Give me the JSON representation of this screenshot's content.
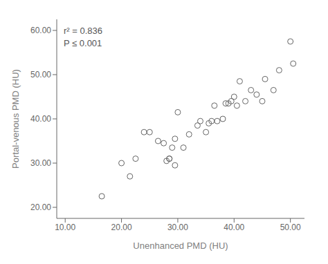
{
  "chart_data": {
    "type": "scatter",
    "x": [
      16.5,
      20.0,
      21.5,
      22.5,
      24.0,
      25.0,
      26.5,
      27.5,
      28.0,
      28.5,
      28.5,
      29.0,
      29.5,
      29.5,
      30.0,
      31.0,
      32.0,
      33.5,
      34.0,
      35.0,
      35.5,
      36.0,
      36.5,
      37.0,
      38.0,
      38.5,
      39.0,
      39.5,
      40.0,
      40.5,
      41.0,
      42.0,
      43.0,
      44.0,
      45.0,
      45.5,
      47.0,
      48.0,
      50.0,
      50.5
    ],
    "values": [
      22.5,
      30.0,
      27.0,
      31.0,
      37.0,
      37.0,
      35.0,
      34.5,
      30.5,
      31.0,
      31.0,
      33.5,
      29.5,
      35.5,
      41.5,
      33.5,
      36.5,
      38.5,
      39.5,
      37.0,
      39.0,
      39.5,
      43.0,
      39.5,
      40.0,
      43.5,
      43.5,
      44.0,
      45.0,
      43.0,
      48.5,
      44.0,
      46.5,
      45.5,
      44.0,
      49.0,
      46.5,
      51.0,
      57.5,
      52.5
    ],
    "xlabel": "Unenhanced PMD (HU)",
    "ylabel": "Portal-venous PMD (HU)",
    "xlim": [
      8.5,
      52.5
    ],
    "ylim": [
      17.5,
      62.5
    ],
    "xticks": [
      {
        "value": 10,
        "label": "10.00"
      },
      {
        "value": 20,
        "label": "20.00"
      },
      {
        "value": 30,
        "label": "30.00"
      },
      {
        "value": 40,
        "label": "40.00"
      },
      {
        "value": 50,
        "label": "50.00"
      }
    ],
    "yticks": [
      {
        "value": 20,
        "label": "20.00"
      },
      {
        "value": 30,
        "label": "30.00"
      },
      {
        "value": 40,
        "label": "40.00"
      },
      {
        "value": 50,
        "label": "50.00"
      },
      {
        "value": 60,
        "label": "60.00"
      }
    ],
    "annotations": [
      "r² = 0.836",
      "P ≤ 0.001"
    ],
    "color": "#666666",
    "marker": "circle",
    "grid": false
  }
}
